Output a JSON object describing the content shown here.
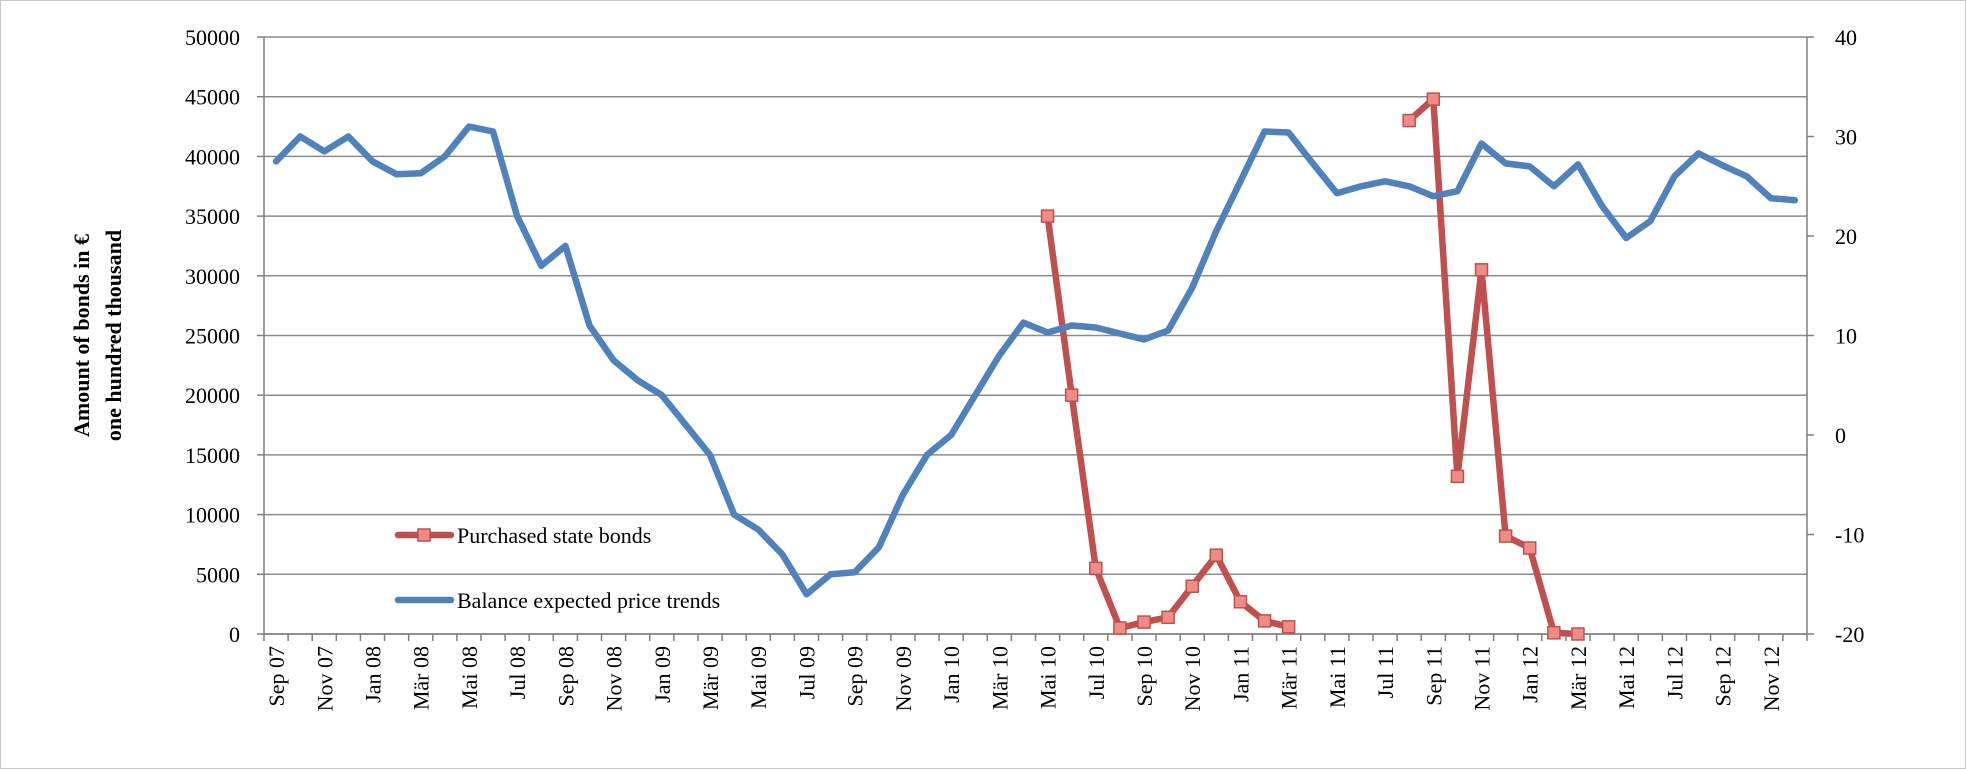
{
  "chart_data": {
    "type": "line",
    "y_left_label_line1": "Amount of bonds in €",
    "y_left_label_line2": "one hundred thousand",
    "y_left_lim": [
      0,
      50000
    ],
    "y_left_ticks": [
      0,
      5000,
      10000,
      15000,
      20000,
      25000,
      30000,
      35000,
      40000,
      45000,
      50000
    ],
    "y_right_lim": [
      -20,
      40
    ],
    "y_right_ticks": [
      -20,
      -10,
      0,
      10,
      20,
      30,
      40
    ],
    "x_tick_labels": [
      "Sep 07",
      "Nov 07",
      "Jan 08",
      "Mär 08",
      "Mai 08",
      "Jul 08",
      "Sep 08",
      "Nov 08",
      "Jan 09",
      "Mär 09",
      "Mai 09",
      "Jul 09",
      "Sep 09",
      "Nov 09",
      "Jan 10",
      "Mär 10",
      "Mai 10",
      "Jul 10",
      "Sep 10",
      "Nov 10",
      "Jan 11",
      "Mär 11",
      "Mai 11",
      "Jul 11",
      "Sep 11",
      "Nov 11",
      "Jan 12",
      "Mär 12",
      "Mai 12",
      "Jul 12",
      "Sep 12",
      "Nov 12"
    ],
    "x_months": [
      "Sep 07",
      "Okt 07",
      "Nov 07",
      "Dez 07",
      "Jan 08",
      "Feb 08",
      "Mär 08",
      "Apr 08",
      "Mai 08",
      "Jun 08",
      "Jul 08",
      "Aug 08",
      "Sep 08",
      "Okt 08",
      "Nov 08",
      "Dez 08",
      "Jan 09",
      "Feb 09",
      "Mär 09",
      "Apr 09",
      "Mai 09",
      "Jun 09",
      "Jul 09",
      "Aug 09",
      "Sep 09",
      "Okt 09",
      "Nov 09",
      "Dez 09",
      "Jan 10",
      "Feb 10",
      "Mär 10",
      "Apr 10",
      "Mai 10",
      "Jun 10",
      "Jul 10",
      "Aug 10",
      "Sep 10",
      "Okt 10",
      "Nov 10",
      "Dez 10",
      "Jan 11",
      "Feb 11",
      "Mär 11",
      "Apr 11",
      "Mai 11",
      "Jun 11",
      "Jul 11",
      "Aug 11",
      "Sep 11",
      "Okt 11",
      "Nov 11",
      "Dez 11",
      "Jan 12",
      "Feb 12",
      "Mär 12",
      "Apr 12",
      "Mai 12",
      "Jun 12",
      "Jul 12",
      "Aug 12",
      "Sep 12",
      "Okt 12",
      "Nov 12",
      "Dez 12"
    ],
    "grid": true,
    "legend_position": "bottom-left inside",
    "series": [
      {
        "name": "Purchased state bonds",
        "axis": "left",
        "color": "#c0504d",
        "marker_fill": "#f08c87",
        "marker": "square",
        "values": [
          null,
          null,
          null,
          null,
          null,
          null,
          null,
          null,
          null,
          null,
          null,
          null,
          null,
          null,
          null,
          null,
          null,
          null,
          null,
          null,
          null,
          null,
          null,
          null,
          null,
          null,
          null,
          null,
          null,
          null,
          null,
          null,
          35000,
          20000,
          5500,
          500,
          1000,
          1400,
          4000,
          6600,
          2700,
          1100,
          600,
          null,
          null,
          null,
          null,
          43000,
          44800,
          13200,
          30500,
          8200,
          7200,
          100,
          0,
          null,
          null,
          null,
          null,
          null,
          null,
          null,
          null,
          null
        ]
      },
      {
        "name": "Balance expected price trends",
        "axis": "right",
        "color": "#4f81bd",
        "values": [
          27.5,
          30,
          28.5,
          30,
          27.5,
          26.2,
          26.3,
          28,
          31,
          30.5,
          22,
          17,
          19,
          11,
          7.5,
          5.5,
          4,
          1,
          -2,
          -8,
          -9.5,
          -12,
          -16,
          -14,
          -13.8,
          -11.3,
          -6,
          -2,
          0,
          4,
          8,
          11.3,
          10.3,
          11,
          10.8,
          10.2,
          9.6,
          10.5,
          14.8,
          20.5,
          25.5,
          30.5,
          30.4,
          27.3,
          24.3,
          25,
          25.5,
          25,
          24,
          24.5,
          29.3,
          27.3,
          27,
          25,
          27.2,
          23,
          19.8,
          21.5,
          26,
          28.3,
          27.1,
          26,
          23.8,
          23.6
        ]
      }
    ]
  }
}
